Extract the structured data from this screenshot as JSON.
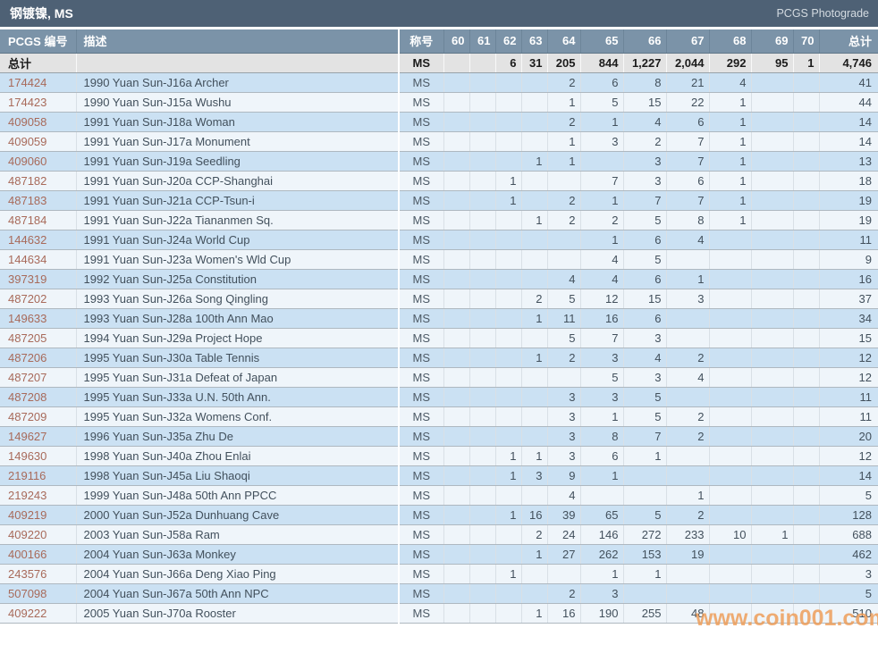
{
  "title_bar": {
    "title": "钢镀镍, MS",
    "photograde_label": "PCGS Photograde"
  },
  "table": {
    "headers": {
      "pcgs_no": "PCGS 编号",
      "description": "描述",
      "designation": "称号",
      "grades": [
        "60",
        "61",
        "62",
        "63",
        "64",
        "65",
        "66",
        "67",
        "68",
        "69",
        "70"
      ],
      "total": "总计"
    },
    "totals_row": {
      "label": "总计",
      "description": "",
      "designation": "MS",
      "grades": [
        "",
        "",
        "6",
        "31",
        "205",
        "844",
        "1,227",
        "2,044",
        "292",
        "95",
        "1"
      ],
      "total": "4,746"
    },
    "rows": [
      {
        "pcgs_no": "174424",
        "description": "1990 Yuan Sun-J16a Archer",
        "designation": "MS",
        "grades": [
          "",
          "",
          "",
          "",
          "2",
          "6",
          "8",
          "21",
          "4",
          "",
          ""
        ],
        "total": "41"
      },
      {
        "pcgs_no": "174423",
        "description": "1990 Yuan Sun-J15a Wushu",
        "designation": "MS",
        "grades": [
          "",
          "",
          "",
          "",
          "1",
          "5",
          "15",
          "22",
          "1",
          "",
          ""
        ],
        "total": "44"
      },
      {
        "pcgs_no": "409058",
        "description": "1991 Yuan Sun-J18a Woman",
        "designation": "MS",
        "grades": [
          "",
          "",
          "",
          "",
          "2",
          "1",
          "4",
          "6",
          "1",
          "",
          ""
        ],
        "total": "14"
      },
      {
        "pcgs_no": "409059",
        "description": "1991 Yuan Sun-J17a Monument",
        "designation": "MS",
        "grades": [
          "",
          "",
          "",
          "",
          "1",
          "3",
          "2",
          "7",
          "1",
          "",
          ""
        ],
        "total": "14"
      },
      {
        "pcgs_no": "409060",
        "description": "1991 Yuan Sun-J19a Seedling",
        "designation": "MS",
        "grades": [
          "",
          "",
          "",
          "1",
          "1",
          "",
          "3",
          "7",
          "1",
          "",
          ""
        ],
        "total": "13"
      },
      {
        "pcgs_no": "487182",
        "description": "1991 Yuan Sun-J20a CCP-Shanghai",
        "designation": "MS",
        "grades": [
          "",
          "",
          "1",
          "",
          "",
          "7",
          "3",
          "6",
          "1",
          "",
          ""
        ],
        "total": "18"
      },
      {
        "pcgs_no": "487183",
        "description": "1991 Yuan Sun-J21a CCP-Tsun-i",
        "designation": "MS",
        "grades": [
          "",
          "",
          "1",
          "",
          "2",
          "1",
          "7",
          "7",
          "1",
          "",
          ""
        ],
        "total": "19"
      },
      {
        "pcgs_no": "487184",
        "description": "1991 Yuan Sun-J22a Tiananmen Sq.",
        "designation": "MS",
        "grades": [
          "",
          "",
          "",
          "1",
          "2",
          "2",
          "5",
          "8",
          "1",
          "",
          ""
        ],
        "total": "19"
      },
      {
        "pcgs_no": "144632",
        "description": "1991 Yuan Sun-J24a World Cup",
        "designation": "MS",
        "grades": [
          "",
          "",
          "",
          "",
          "",
          "1",
          "6",
          "4",
          "",
          "",
          ""
        ],
        "total": "11"
      },
      {
        "pcgs_no": "144634",
        "description": "1991 Yuan Sun-J23a Women's Wld Cup",
        "designation": "MS",
        "grades": [
          "",
          "",
          "",
          "",
          "",
          "4",
          "5",
          "",
          "",
          "",
          ""
        ],
        "total": "9"
      },
      {
        "pcgs_no": "397319",
        "description": "1992 Yuan Sun-J25a Constitution",
        "designation": "MS",
        "grades": [
          "",
          "",
          "",
          "",
          "4",
          "4",
          "6",
          "1",
          "",
          "",
          ""
        ],
        "total": "16"
      },
      {
        "pcgs_no": "487202",
        "description": "1993 Yuan Sun-J26a Song Qingling",
        "designation": "MS",
        "grades": [
          "",
          "",
          "",
          "2",
          "5",
          "12",
          "15",
          "3",
          "",
          "",
          ""
        ],
        "total": "37"
      },
      {
        "pcgs_no": "149633",
        "description": "1993 Yuan Sun-J28a 100th Ann Mao",
        "designation": "MS",
        "grades": [
          "",
          "",
          "",
          "1",
          "11",
          "16",
          "6",
          "",
          "",
          "",
          ""
        ],
        "total": "34"
      },
      {
        "pcgs_no": "487205",
        "description": "1994 Yuan Sun-J29a Project Hope",
        "designation": "MS",
        "grades": [
          "",
          "",
          "",
          "",
          "5",
          "7",
          "3",
          "",
          "",
          "",
          ""
        ],
        "total": "15"
      },
      {
        "pcgs_no": "487206",
        "description": "1995 Yuan Sun-J30a Table Tennis",
        "designation": "MS",
        "grades": [
          "",
          "",
          "",
          "1",
          "2",
          "3",
          "4",
          "2",
          "",
          "",
          ""
        ],
        "total": "12"
      },
      {
        "pcgs_no": "487207",
        "description": "1995 Yuan Sun-J31a Defeat of Japan",
        "designation": "MS",
        "grades": [
          "",
          "",
          "",
          "",
          "",
          "5",
          "3",
          "4",
          "",
          "",
          ""
        ],
        "total": "12"
      },
      {
        "pcgs_no": "487208",
        "description": "1995 Yuan Sun-J33a U.N. 50th Ann.",
        "designation": "MS",
        "grades": [
          "",
          "",
          "",
          "",
          "3",
          "3",
          "5",
          "",
          "",
          "",
          ""
        ],
        "total": "11"
      },
      {
        "pcgs_no": "487209",
        "description": "1995 Yuan Sun-J32a Womens Conf.",
        "designation": "MS",
        "grades": [
          "",
          "",
          "",
          "",
          "3",
          "1",
          "5",
          "2",
          "",
          "",
          ""
        ],
        "total": "11"
      },
      {
        "pcgs_no": "149627",
        "description": "1996 Yuan Sun-J35a Zhu De",
        "designation": "MS",
        "grades": [
          "",
          "",
          "",
          "",
          "3",
          "8",
          "7",
          "2",
          "",
          "",
          ""
        ],
        "total": "20"
      },
      {
        "pcgs_no": "149630",
        "description": "1998 Yuan Sun-J40a Zhou Enlai",
        "designation": "MS",
        "grades": [
          "",
          "",
          "1",
          "1",
          "3",
          "6",
          "1",
          "",
          "",
          "",
          ""
        ],
        "total": "12"
      },
      {
        "pcgs_no": "219116",
        "description": "1998 Yuan Sun-J45a Liu Shaoqi",
        "designation": "MS",
        "grades": [
          "",
          "",
          "1",
          "3",
          "9",
          "1",
          "",
          "",
          "",
          "",
          ""
        ],
        "total": "14"
      },
      {
        "pcgs_no": "219243",
        "description": "1999 Yuan Sun-J48a 50th Ann PPCC",
        "designation": "MS",
        "grades": [
          "",
          "",
          "",
          "",
          "4",
          "",
          "",
          "1",
          "",
          "",
          ""
        ],
        "total": "5"
      },
      {
        "pcgs_no": "409219",
        "description": "2000 Yuan Sun-J52a Dunhuang Cave",
        "designation": "MS",
        "grades": [
          "",
          "",
          "1",
          "16",
          "39",
          "65",
          "5",
          "2",
          "",
          "",
          ""
        ],
        "total": "128"
      },
      {
        "pcgs_no": "409220",
        "description": "2003 Yuan Sun-J58a Ram",
        "designation": "MS",
        "grades": [
          "",
          "",
          "",
          "2",
          "24",
          "146",
          "272",
          "233",
          "10",
          "1",
          ""
        ],
        "total": "688"
      },
      {
        "pcgs_no": "400166",
        "description": "2004 Yuan Sun-J63a Monkey",
        "designation": "MS",
        "grades": [
          "",
          "",
          "",
          "1",
          "27",
          "262",
          "153",
          "19",
          "",
          "",
          ""
        ],
        "total": "462"
      },
      {
        "pcgs_no": "243576",
        "description": "2004 Yuan Sun-J66a Deng Xiao Ping",
        "designation": "MS",
        "grades": [
          "",
          "",
          "1",
          "",
          "",
          "1",
          "1",
          "",
          "",
          "",
          ""
        ],
        "total": "3"
      },
      {
        "pcgs_no": "507098",
        "description": "2004 Yuan Sun-J67a 50th Ann NPC",
        "designation": "MS",
        "grades": [
          "",
          "",
          "",
          "",
          "2",
          "3",
          "",
          "",
          "",
          "",
          ""
        ],
        "total": "5"
      },
      {
        "pcgs_no": "409222",
        "description": "2005 Yuan Sun-J70a Rooster",
        "designation": "MS",
        "grades": [
          "",
          "",
          "",
          "1",
          "16",
          "190",
          "255",
          "48",
          "",
          "",
          ""
        ],
        "total": "510"
      }
    ]
  },
  "watermark": {
    "text": "www.coin001.com"
  },
  "colors": {
    "title_bar_bg": "#4e6175",
    "header_bg": "#7b93a8",
    "totals_bg": "#e3e3e3",
    "row_blue": "#cbe1f3",
    "row_light": "#eff5fa",
    "pcgs_link": "#a86a5a",
    "watermark": "#ee9950"
  }
}
